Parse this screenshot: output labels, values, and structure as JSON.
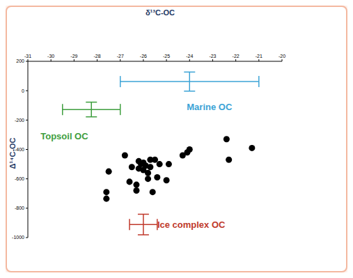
{
  "chart_data": {
    "type": "scatter",
    "xlabel": "δ¹³C-OC",
    "ylabel": "Δ¹⁴C-OC",
    "xlim": [
      -31,
      -20
    ],
    "xticks": [
      -31,
      -30,
      -29,
      -28,
      -27,
      -26,
      -25,
      -24,
      -23,
      -22,
      -21,
      -20
    ],
    "ylim": [
      -1000,
      200
    ],
    "yticks": [
      -1000,
      -800,
      -600,
      -400,
      -200,
      0,
      200
    ],
    "grid": false,
    "series": [
      {
        "color": "#000000",
        "marker": "circle",
        "x": [
          -27.5,
          -27.6,
          -27.6,
          -26.8,
          -26.6,
          -26.5,
          -26.3,
          -26.3,
          -26.2,
          -26.1,
          -26.0,
          -26.0,
          -25.9,
          -26.2,
          -25.8,
          -25.7,
          -25.7,
          -25.6,
          -25.4,
          -25.5,
          -25.3,
          -25.0,
          -24.3,
          -24.0,
          -24.1,
          -24.9,
          -22.4,
          -22.3,
          -21.3,
          -25.8
        ],
        "values": [
          -550,
          -690,
          -735,
          -440,
          -620,
          -520,
          -640,
          -680,
          -530,
          -500,
          -490,
          -540,
          -510,
          -480,
          -560,
          -470,
          -520,
          -690,
          -590,
          -470,
          -500,
          -610,
          -440,
          -400,
          -420,
          -500,
          -330,
          -470,
          -390,
          -600
        ]
      }
    ],
    "end_members": [
      {
        "name": "Marine OC",
        "color": "#3ba3d6",
        "x": -24,
        "y": 62,
        "x_error": 3,
        "y_error": 65
      },
      {
        "name": "Topsoil OC",
        "color": "#3e9e3e",
        "x": -28.25,
        "y": -128,
        "x_error": 1.25,
        "y_error": 50
      },
      {
        "name": "Ice complex OC",
        "color": "#c0392b",
        "x": -26,
        "y": -911,
        "x_error": 0.6,
        "y_error": 70
      }
    ]
  }
}
